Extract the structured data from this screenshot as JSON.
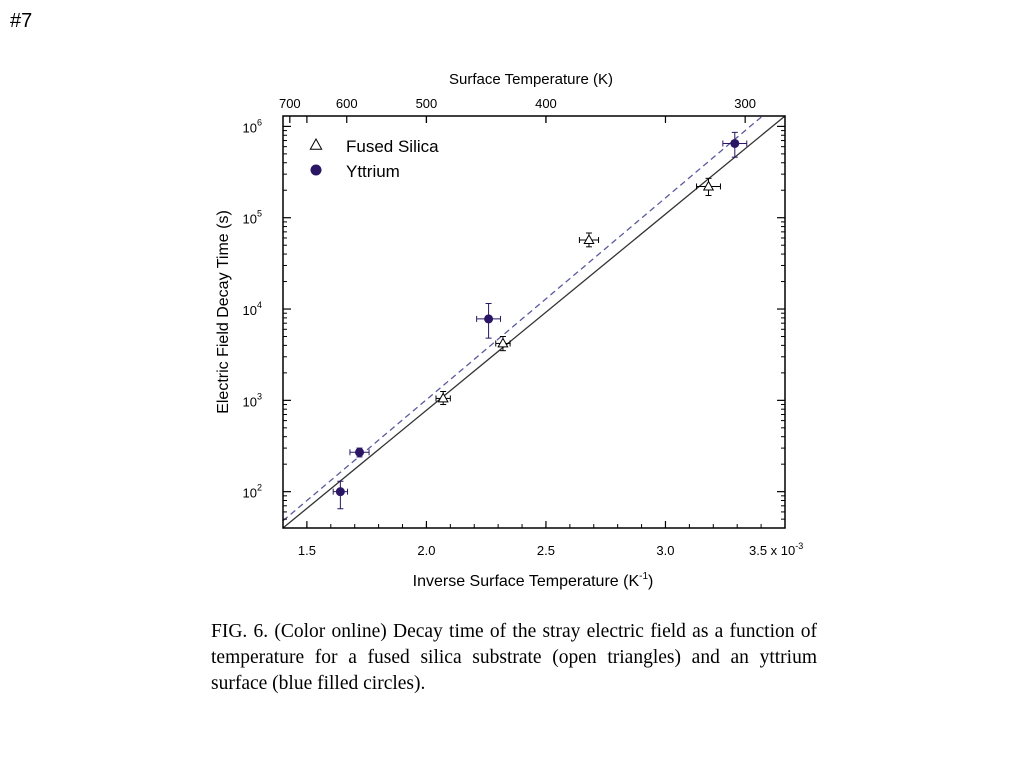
{
  "slide_number": "#7",
  "chart_data": {
    "type": "scatter",
    "title": "",
    "xlabel": "Inverse Surface Temperature (K",
    "xlabel_sup": "-1",
    "xlabel_close": ")",
    "x_multiplier_label": "3.5 x 10",
    "x_multiplier_sup": "-3",
    "xlim": [
      1.4,
      3.5
    ],
    "xticks": [
      1.5,
      2.0,
      2.5,
      3.0
    ],
    "xtick_labels": [
      "1.5",
      "2.0",
      "2.5",
      "3.0"
    ],
    "top_axis_label": "Surface Temperature (K)",
    "top_ticks": [
      700,
      600,
      500,
      400,
      300
    ],
    "top_tick_labels": [
      "700",
      "600",
      "500",
      "400",
      "300"
    ],
    "ylabel": "Electric Field Decay Time (s)",
    "yscale": "log",
    "ylim": [
      40,
      1300000
    ],
    "yticks": [
      100,
      1000,
      10000,
      100000,
      1000000
    ],
    "ytick_bases": [
      "10",
      "10",
      "10",
      "10",
      "10"
    ],
    "ytick_exps": [
      "2",
      "3",
      "4",
      "5",
      "6"
    ],
    "legend_position": "top-left",
    "series": [
      {
        "name": "Fused Silica",
        "marker": "open-triangle",
        "color": "#000000",
        "points": [
          {
            "x": 2.07,
            "y": 1050,
            "xerr": 0.03,
            "ylo": 900,
            "yhi": 1250
          },
          {
            "x": 2.32,
            "y": 4200,
            "xerr": 0.03,
            "ylo": 3500,
            "yhi": 5000
          },
          {
            "x": 2.68,
            "y": 57000,
            "xerr": 0.04,
            "ylo": 48000,
            "yhi": 68000
          },
          {
            "x": 3.18,
            "y": 220000,
            "xerr": 0.05,
            "ylo": 175000,
            "yhi": 270000
          }
        ],
        "fit": {
          "style": "solid",
          "color": "#333333",
          "x": [
            1.4,
            3.5
          ],
          "y": [
            40,
            1300000
          ]
        }
      },
      {
        "name": "Yttrium",
        "marker": "filled-circle",
        "color": "#2a1664",
        "points": [
          {
            "x": 1.64,
            "y": 100,
            "xerr": 0.03,
            "ylo": 65,
            "yhi": 130
          },
          {
            "x": 1.72,
            "y": 270,
            "xerr": 0.04,
            "ylo": 240,
            "yhi": 300
          },
          {
            "x": 2.26,
            "y": 7800,
            "xerr": 0.05,
            "ylo": 4800,
            "yhi": 11500
          },
          {
            "x": 3.29,
            "y": 650000,
            "xerr": 0.05,
            "ylo": 460000,
            "yhi": 860000
          }
        ],
        "fit": {
          "style": "dashed",
          "color": "#5a5a9e",
          "x": [
            1.4,
            3.5
          ],
          "y": [
            48,
            2100000
          ]
        }
      }
    ]
  },
  "caption": "FIG. 6. (Color online) Decay time of the stray electric field as a function of temperature for a fused silica substrate (open triangles) and an yttrium surface (blue filled circles)."
}
